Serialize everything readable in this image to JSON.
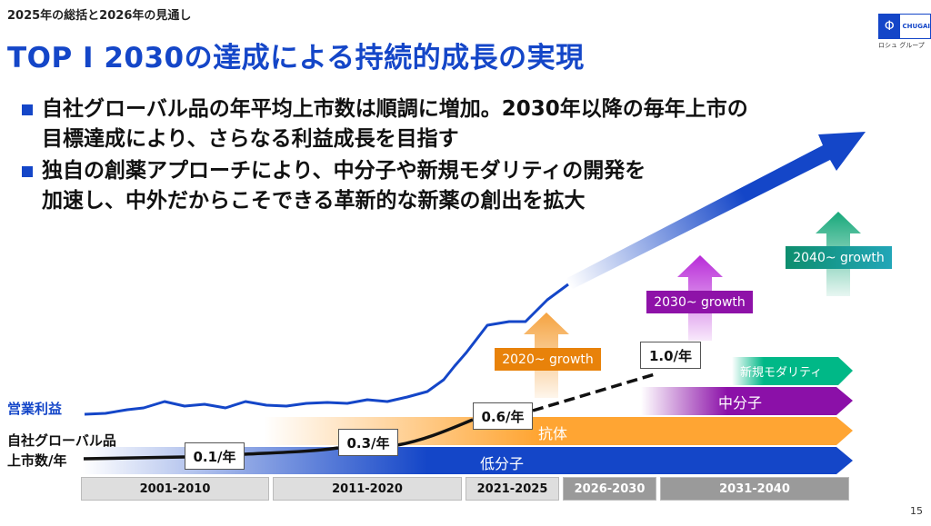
{
  "header": {
    "subtitle": "2025年の総括と2026年の見通し",
    "title": "TOP I 2030の達成による持続的成長の実現",
    "logo_text": "CHUGAI",
    "logo_sub": "ロシュ グループ"
  },
  "bullets": [
    {
      "lines": [
        "自社グローバル品の年平均上市数は順調に増加。2030年以降の毎年上市の",
        "目標達成により、さらなる利益成長を目指す"
      ]
    },
    {
      "lines": [
        "独自の創薬アプローチにより、中分子や新規モダリティの開発を",
        "加速し、中外だからこそできる革新的な新薬の創出を拡大"
      ]
    }
  ],
  "chart": {
    "operating_profit_label": "営業利益",
    "launch_label_line1": "自社グローバル品",
    "launch_label_line2": "上市数/年",
    "rates": [
      "0.1/年",
      "0.3/年",
      "0.6/年",
      "1.0/年"
    ],
    "modalities": [
      "低分子",
      "抗体",
      "中分子",
      "新規モダリティ"
    ],
    "growth_labels": [
      "2020~ growth",
      "2030~ growth",
      "2040~ growth"
    ],
    "periods": [
      "2001-2010",
      "2011-2020",
      "2021-2025",
      "2026-2030",
      "2031-2040"
    ],
    "colors": {
      "blue": "#1446c8",
      "orange": "#FFA533",
      "purple": "#8B10A8",
      "green": "#00B887"
    }
  },
  "page_number": "15"
}
